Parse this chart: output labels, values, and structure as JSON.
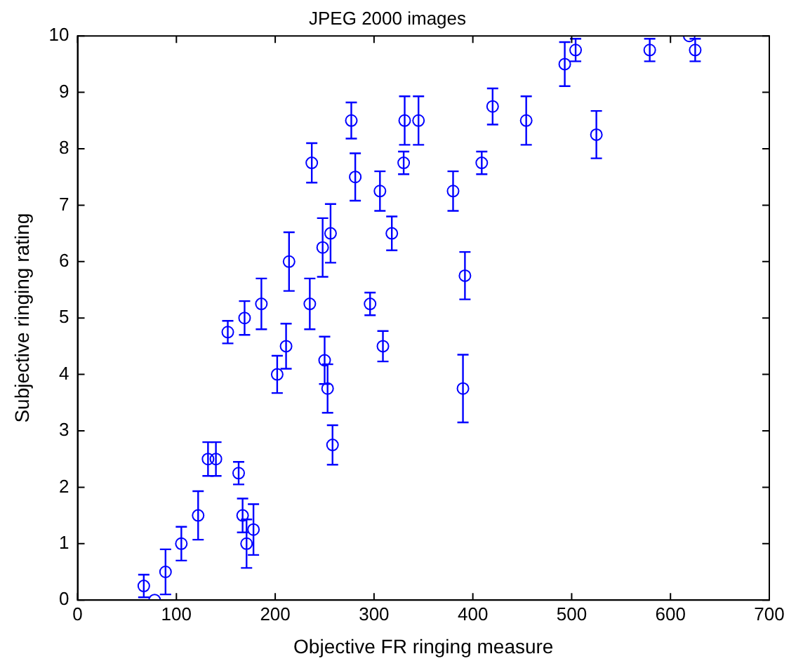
{
  "chart_data": {
    "type": "scatter",
    "title": "JPEG 2000 images",
    "xlabel": "Objective FR ringing measure",
    "ylabel": "Subjective ringing rating",
    "xlim": [
      0,
      700
    ],
    "xticks": [
      0,
      100,
      200,
      300,
      400,
      500,
      600,
      700
    ],
    "ylim": [
      0,
      10
    ],
    "yticks": [
      0,
      1,
      2,
      3,
      4,
      5,
      6,
      7,
      8,
      9,
      10
    ],
    "grid": false,
    "legend": false,
    "marker": "circle",
    "series": [
      {
        "color": "#0000ff",
        "x": [
          67,
          78,
          89,
          105,
          122,
          132,
          140,
          152,
          163,
          167,
          169,
          171,
          178,
          186,
          202,
          211,
          235,
          250,
          253,
          258,
          296,
          309,
          390,
          277,
          237,
          281,
          306,
          214,
          248,
          256,
          318,
          331,
          345,
          330,
          420,
          454,
          409,
          380,
          392,
          493,
          504,
          579,
          625,
          619,
          525
        ],
        "values": [
          0.25,
          0,
          0.5,
          1,
          1.5,
          2.5,
          2.5,
          4.75,
          2.25,
          1.5,
          5,
          1,
          1.25,
          5.25,
          4,
          4.5,
          5.25,
          4.25,
          3.75,
          2.75,
          5.25,
          4.5,
          3.75,
          8.5,
          7.75,
          7.5,
          7.25,
          6,
          6.25,
          6.5,
          6.5,
          8.5,
          8.5,
          7.75,
          8.75,
          8.5,
          7.75,
          7.25,
          5.75,
          9.5,
          9.75,
          9.75,
          9.75,
          10,
          8.25
        ],
        "errors": [
          0.2,
          null,
          0.4,
          0.3,
          0.43,
          0.3,
          0.3,
          0.2,
          0.2,
          0.3,
          0.3,
          0.43,
          0.45,
          0.45,
          0.33,
          0.4,
          0.45,
          0.42,
          0.43,
          0.35,
          0.2,
          0.27,
          0.6,
          0.32,
          0.35,
          0.42,
          0.35,
          0.52,
          0.52,
          0.52,
          0.3,
          0.43,
          0.43,
          0.2,
          0.32,
          0.43,
          0.2,
          0.35,
          0.42,
          0.39,
          0.2,
          0.2,
          0.2,
          null,
          0.42
        ]
      }
    ]
  }
}
